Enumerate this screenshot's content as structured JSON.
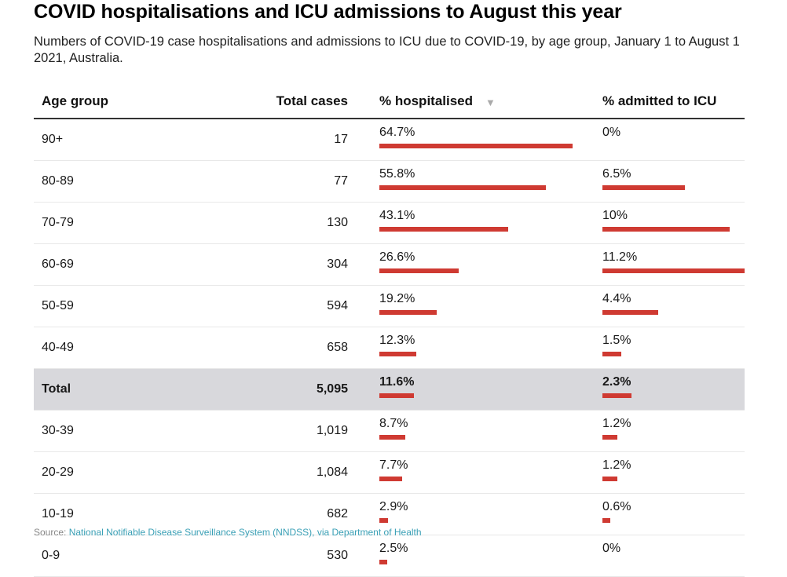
{
  "title": "COVID hospitalisations and ICU admissions to August this year",
  "subtitle": "Numbers of COVID-19 case hospitalisations and admissions to ICU due to COVID-19, by age group, January 1 to August 1 2021, Australia.",
  "colors": {
    "bar": "#cf3a32",
    "total_row_bg": "#d8d8dc",
    "source_link": "#3aa0b6"
  },
  "source": {
    "label": "Source:",
    "link_text": "National Notifiable Disease Surveillance System (NNDSS), via Department of Health"
  },
  "chart_data": {
    "type": "table",
    "title": "COVID hospitalisations and ICU admissions to August this year",
    "columns": [
      "Age group",
      "Total cases",
      "% hospitalised",
      "% admitted to ICU"
    ],
    "sorted_by": "% hospitalised",
    "sort_icon": "sort-descending-icon",
    "bar_scale_max": {
      "hospitalised": 64.7,
      "icu": 11.2
    },
    "rows": [
      {
        "age": "90+",
        "cases": "17",
        "hosp": 64.7,
        "hosp_label": "64.7%",
        "icu": 0,
        "icu_label": "0%",
        "total": false
      },
      {
        "age": "80-89",
        "cases": "77",
        "hosp": 55.8,
        "hosp_label": "55.8%",
        "icu": 6.5,
        "icu_label": "6.5%",
        "total": false
      },
      {
        "age": "70-79",
        "cases": "130",
        "hosp": 43.1,
        "hosp_label": "43.1%",
        "icu": 10,
        "icu_label": "10%",
        "total": false
      },
      {
        "age": "60-69",
        "cases": "304",
        "hosp": 26.6,
        "hosp_label": "26.6%",
        "icu": 11.2,
        "icu_label": "11.2%",
        "total": false
      },
      {
        "age": "50-59",
        "cases": "594",
        "hosp": 19.2,
        "hosp_label": "19.2%",
        "icu": 4.4,
        "icu_label": "4.4%",
        "total": false
      },
      {
        "age": "40-49",
        "cases": "658",
        "hosp": 12.3,
        "hosp_label": "12.3%",
        "icu": 1.5,
        "icu_label": "1.5%",
        "total": false
      },
      {
        "age": "Total",
        "cases": "5,095",
        "hosp": 11.6,
        "hosp_label": "11.6%",
        "icu": 2.3,
        "icu_label": "2.3%",
        "total": true
      },
      {
        "age": "30-39",
        "cases": "1,019",
        "hosp": 8.7,
        "hosp_label": "8.7%",
        "icu": 1.2,
        "icu_label": "1.2%",
        "total": false
      },
      {
        "age": "20-29",
        "cases": "1,084",
        "hosp": 7.7,
        "hosp_label": "7.7%",
        "icu": 1.2,
        "icu_label": "1.2%",
        "total": false
      },
      {
        "age": "10-19",
        "cases": "682",
        "hosp": 2.9,
        "hosp_label": "2.9%",
        "icu": 0.6,
        "icu_label": "0.6%",
        "total": false
      },
      {
        "age": "0-9",
        "cases": "530",
        "hosp": 2.5,
        "hosp_label": "2.5%",
        "icu": 0,
        "icu_label": "0%",
        "total": false
      }
    ]
  }
}
